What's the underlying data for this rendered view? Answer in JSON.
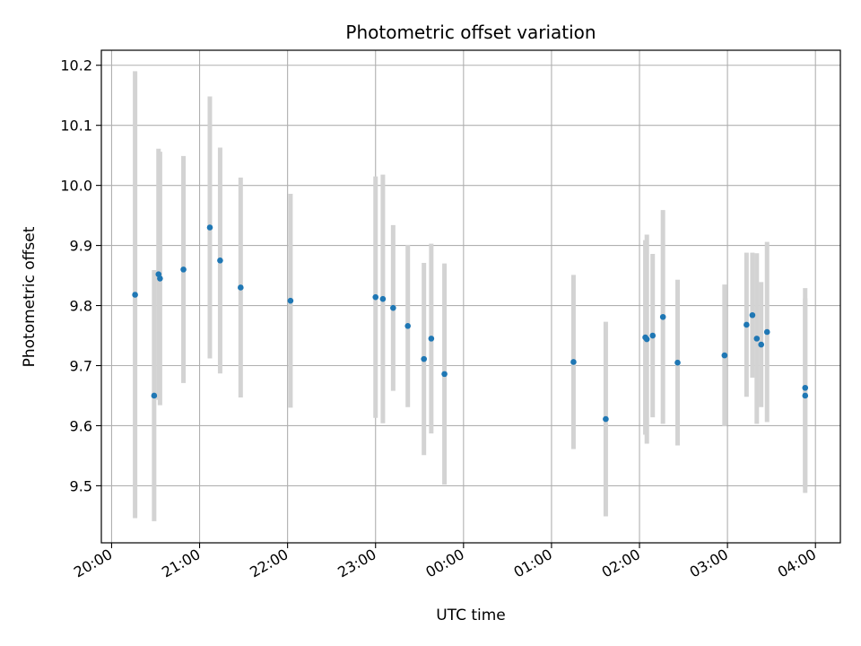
{
  "chart_data": {
    "type": "scatter",
    "title": "Photometric offset variation",
    "xlabel": "UTC time",
    "ylabel": "Photometric offset",
    "x_axis": "time (HH:MM UTC, night spanning midnight)",
    "xlim": [
      "19:53",
      "04:17"
    ],
    "ylim": [
      9.405,
      10.225
    ],
    "grid": true,
    "x_ticks": [
      "20:00",
      "21:00",
      "22:00",
      "23:00",
      "00:00",
      "01:00",
      "02:00",
      "03:00",
      "04:00"
    ],
    "y_ticks": [
      9.5,
      9.6,
      9.7,
      9.8,
      9.9,
      10.0,
      10.1,
      10.2
    ],
    "y_tick_labels": [
      "9.5",
      "9.6",
      "9.7",
      "9.8",
      "9.9",
      "10.0",
      "10.1",
      "10.2"
    ],
    "point_color": "#1f77b4",
    "errorbar_color": "#d3d3d3",
    "points": [
      {
        "t": "20:16",
        "y": 9.818,
        "err": 0.372
      },
      {
        "t": "20:29",
        "y": 9.65,
        "err": 0.209
      },
      {
        "t": "20:32",
        "y": 9.852,
        "err": 0.209
      },
      {
        "t": "20:33",
        "y": 9.845,
        "err": 0.211
      },
      {
        "t": "20:49",
        "y": 9.86,
        "err": 0.189
      },
      {
        "t": "21:07",
        "y": 9.93,
        "err": 0.218
      },
      {
        "t": "21:14",
        "y": 9.875,
        "err": 0.188
      },
      {
        "t": "21:28",
        "y": 9.83,
        "err": 0.183
      },
      {
        "t": "22:02",
        "y": 9.808,
        "err": 0.178
      },
      {
        "t": "23:00",
        "y": 9.814,
        "err": 0.201
      },
      {
        "t": "23:05",
        "y": 9.811,
        "err": 0.207
      },
      {
        "t": "23:12",
        "y": 9.796,
        "err": 0.138
      },
      {
        "t": "23:22",
        "y": 9.766,
        "err": 0.135
      },
      {
        "t": "23:33",
        "y": 9.711,
        "err": 0.16
      },
      {
        "t": "23:38",
        "y": 9.745,
        "err": 0.158
      },
      {
        "t": "23:47",
        "y": 9.686,
        "err": 0.184
      },
      {
        "t": "01:15",
        "y": 9.706,
        "err": 0.145
      },
      {
        "t": "01:37",
        "y": 9.611,
        "err": 0.162
      },
      {
        "t": "02:04",
        "y": 9.747,
        "err": 0.162
      },
      {
        "t": "02:05",
        "y": 9.744,
        "err": 0.174
      },
      {
        "t": "02:09",
        "y": 9.75,
        "err": 0.136
      },
      {
        "t": "02:16",
        "y": 9.781,
        "err": 0.178
      },
      {
        "t": "02:26",
        "y": 9.705,
        "err": 0.138
      },
      {
        "t": "02:58",
        "y": 9.717,
        "err": 0.118
      },
      {
        "t": "03:13",
        "y": 9.768,
        "err": 0.12
      },
      {
        "t": "03:17",
        "y": 9.784,
        "err": 0.104
      },
      {
        "t": "03:20",
        "y": 9.745,
        "err": 0.142
      },
      {
        "t": "03:23",
        "y": 9.735,
        "err": 0.104
      },
      {
        "t": "03:27",
        "y": 9.756,
        "err": 0.15
      },
      {
        "t": "03:53",
        "y": 9.663,
        "err": 0.166
      },
      {
        "t": "03:53",
        "y": 9.65,
        "err": 0.162
      }
    ]
  }
}
